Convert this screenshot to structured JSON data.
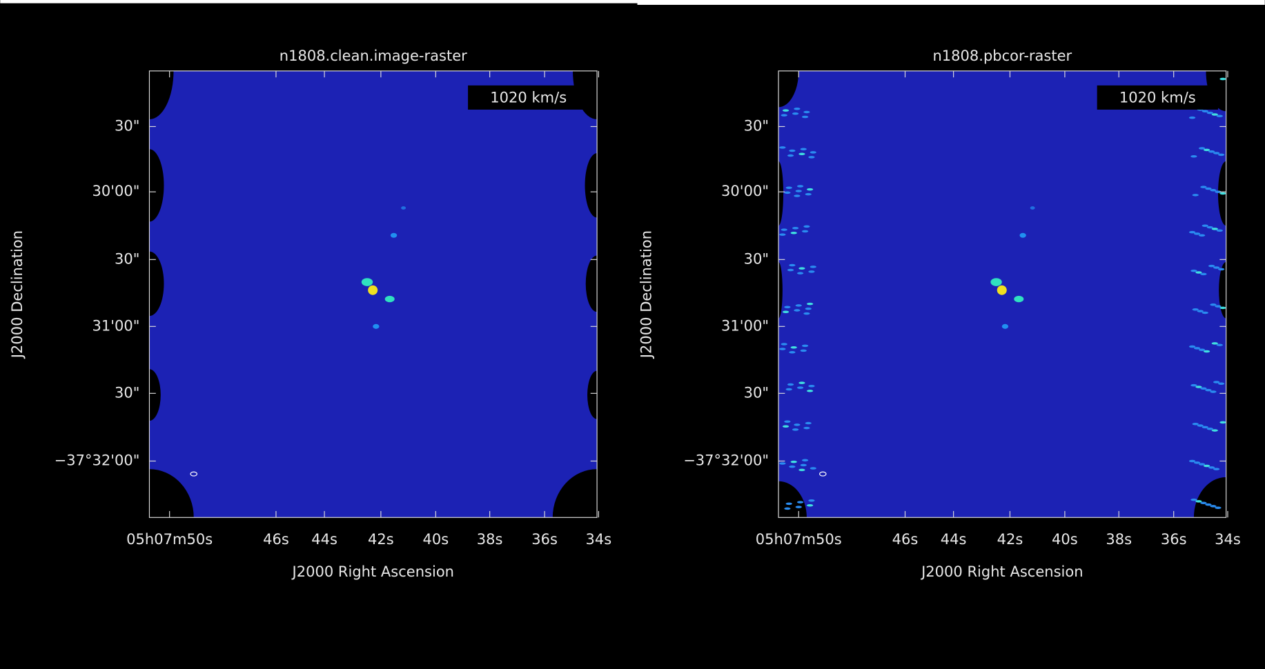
{
  "panels": [
    {
      "title": "n1808.clean.image-raster",
      "velocity": "1020 km/s",
      "y_ticks": [
        "30\"",
        "30'00\"",
        "30\"",
        "31'00\"",
        "30\"",
        "−37°32'00\""
      ],
      "x_ticks": [
        "05h07m50s",
        "46s",
        "44s",
        "42s",
        "40s",
        "38s",
        "36s",
        "34s"
      ],
      "x_axis_label": "J2000 Right Ascension",
      "y_axis_label": "J2000 Declination"
    },
    {
      "title": "n1808.pbcor-raster",
      "velocity": "1020 km/s",
      "y_ticks": [
        "30\"",
        "30'00\"",
        "30\"",
        "31'00\"",
        "30\"",
        "−37°32'00\""
      ],
      "x_ticks": [
        "05h07m50s",
        "46s",
        "44s",
        "42s",
        "40s",
        "38s",
        "36s",
        "34s"
      ],
      "x_axis_label": "J2000 Right Ascension",
      "y_axis_label": "J2000 Declination"
    }
  ]
}
